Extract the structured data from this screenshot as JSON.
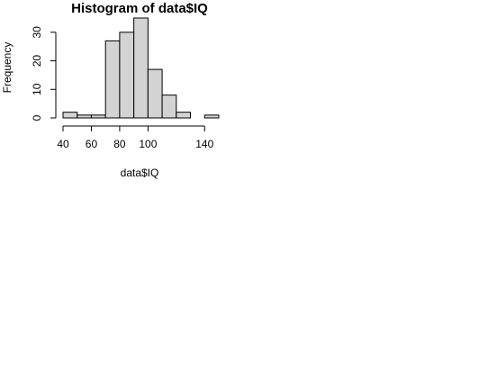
{
  "chart_data": {
    "type": "bar",
    "title": "Histogram of data$IQ",
    "xlabel": "data$IQ",
    "ylabel": "Frequency",
    "bin_width": 10,
    "bins": [
      {
        "start": 40,
        "end": 50,
        "count": 2
      },
      {
        "start": 50,
        "end": 60,
        "count": 1
      },
      {
        "start": 60,
        "end": 70,
        "count": 1
      },
      {
        "start": 70,
        "end": 80,
        "count": 27
      },
      {
        "start": 80,
        "end": 90,
        "count": 30
      },
      {
        "start": 90,
        "end": 100,
        "count": 35
      },
      {
        "start": 100,
        "end": 110,
        "count": 17
      },
      {
        "start": 110,
        "end": 120,
        "count": 8
      },
      {
        "start": 120,
        "end": 130,
        "count": 2
      },
      {
        "start": 130,
        "end": 140,
        "count": 0
      },
      {
        "start": 140,
        "end": 150,
        "count": 1
      }
    ],
    "xlim": [
      40,
      150
    ],
    "ylim": [
      0,
      35
    ],
    "x_ticks": [
      40,
      60,
      80,
      100,
      140
    ],
    "y_ticks": [
      0,
      10,
      20,
      30
    ],
    "bar_color": "#d3d3d3",
    "bar_border_color": "#000000",
    "grid": false,
    "legend": "none"
  }
}
